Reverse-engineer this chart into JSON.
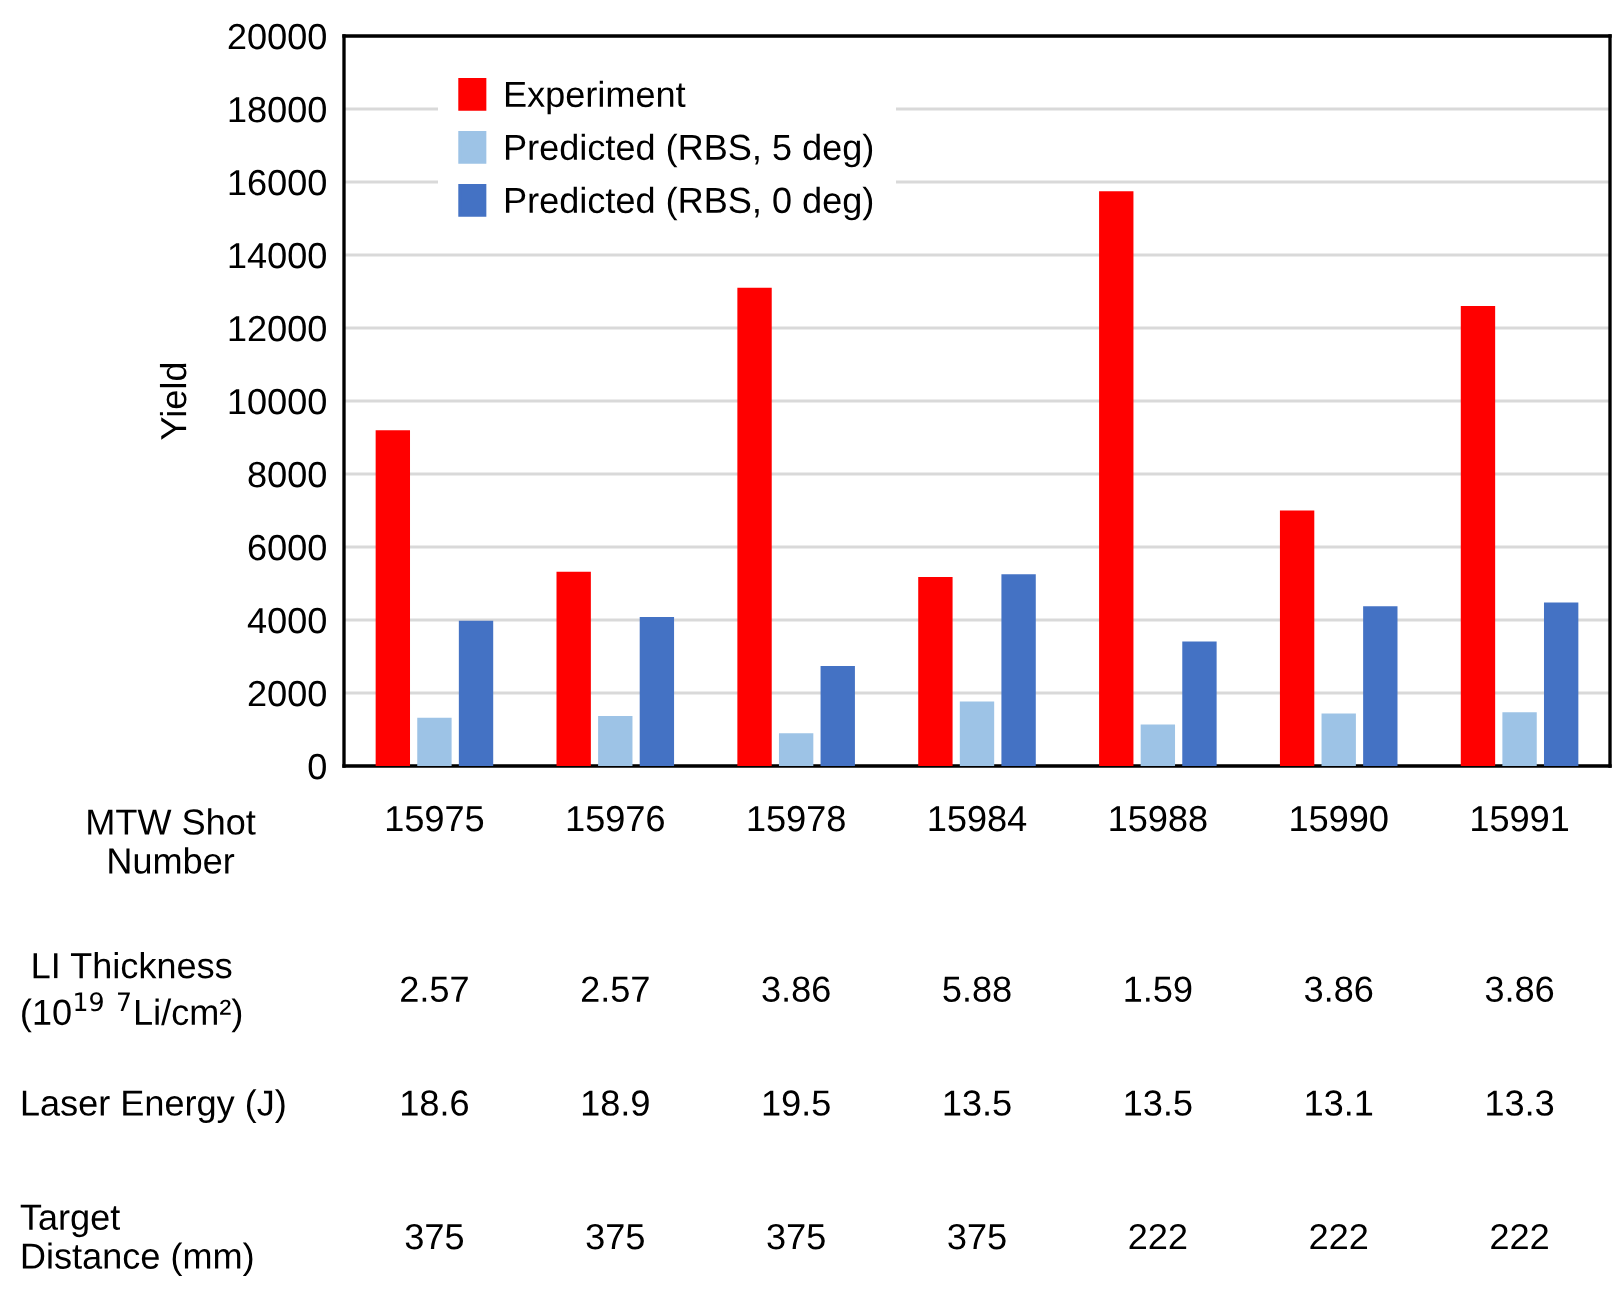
{
  "chart_data": {
    "type": "bar",
    "ylabel": "Yield",
    "xlabel": "MTW Shot\nNumber",
    "categories": [
      "15975",
      "15976",
      "15978",
      "15984",
      "15988",
      "15990",
      "15991"
    ],
    "series": [
      {
        "name": "Experiment",
        "color": "#ff0000",
        "values": [
          9200,
          5320,
          13100,
          5180,
          15750,
          7000,
          12600
        ]
      },
      {
        "name": "Predicted (RBS, 5 deg)",
        "color": "#9dc3e6",
        "values": [
          1320,
          1370,
          900,
          1770,
          1140,
          1440,
          1470
        ]
      },
      {
        "name": "Predicted (RBS, 0 deg)",
        "color": "#4472c4",
        "values": [
          3980,
          4080,
          2740,
          5250,
          3410,
          4380,
          4480
        ]
      }
    ],
    "ylim": [
      0,
      20000
    ],
    "yticks": [
      0,
      2000,
      4000,
      6000,
      8000,
      10000,
      12000,
      14000,
      16000,
      18000,
      20000
    ],
    "grid": "y",
    "legend": "top left",
    "annotations": [
      "LI Thickness\n(10$^{19}$ $^{7}$Li/cm²)",
      "2.57",
      "2.57",
      "3.86",
      "5.88",
      "1.59",
      "3.86",
      "3.86",
      "Laser Energy (J)",
      "18.6",
      "18.9",
      "19.5",
      "13.5",
      "13.5",
      "13.1",
      "13.3",
      "Target\nDistance (mm)",
      "375",
      "375",
      "375",
      "375",
      "222",
      "222",
      "222"
    ]
  }
}
